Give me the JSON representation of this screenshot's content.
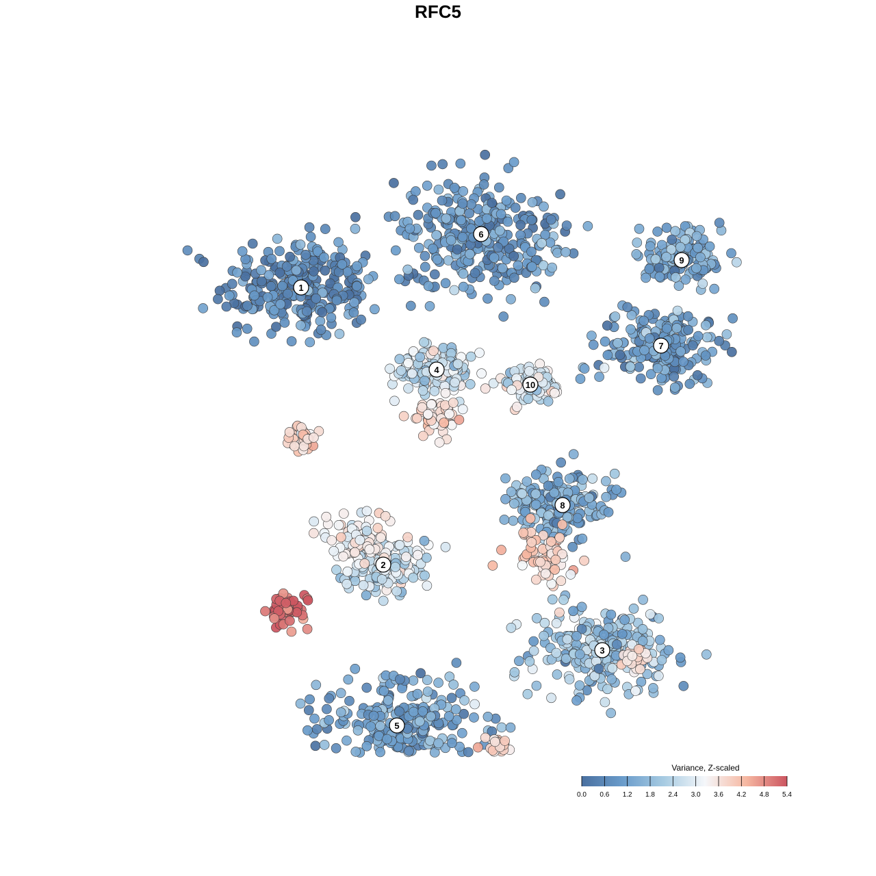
{
  "chart_data": {
    "type": "scatter",
    "title": "RFC5",
    "colorbar": {
      "title": "Variance, Z-scaled",
      "min": 0.0,
      "max": 5.4,
      "ticks": [
        "0.0",
        "0.6",
        "1.2",
        "1.8",
        "2.4",
        "3.0",
        "3.6",
        "4.2",
        "4.8",
        "5.4"
      ],
      "colors": [
        "#4a70a0",
        "#6a9ccb",
        "#a7cbe2",
        "#f5f7fa",
        "#f6b8a2",
        "#cc5560"
      ],
      "placement": "bottom-right"
    },
    "clusters": [
      {
        "label": "1",
        "x": -2.0,
        "y": 2.2,
        "value": 0.6,
        "spread": 1.05
      },
      {
        "label": "2",
        "x": -0.8,
        "y": -1.85,
        "value": 2.6,
        "spread": 0.55
      },
      {
        "label": "3",
        "x": 2.4,
        "y": -3.1,
        "value": 1.9,
        "spread": 0.95
      },
      {
        "label": "4",
        "x": -0.02,
        "y": 1.0,
        "value": 2.7,
        "spread": 0.55
      },
      {
        "label": "5",
        "x": -0.6,
        "y": -4.2,
        "value": 1.2,
        "spread": 1.05
      },
      {
        "label": "6",
        "x": 0.63,
        "y": 2.98,
        "value": 0.9,
        "spread": 1.15
      },
      {
        "label": "7",
        "x": 3.26,
        "y": 1.35,
        "value": 1.0,
        "spread": 0.8
      },
      {
        "label": "8",
        "x": 1.82,
        "y": -0.98,
        "value": 1.4,
        "spread": 0.7
      },
      {
        "label": "9",
        "x": 3.56,
        "y": 2.6,
        "value": 1.3,
        "spread": 0.55
      },
      {
        "label": "10",
        "x": 1.35,
        "y": 0.78,
        "value": 2.9,
        "spread": 0.35
      }
    ],
    "hotspots": [
      {
        "x": -2.2,
        "y": -2.5,
        "value": 5.1,
        "spread": 0.18
      },
      {
        "x": -2.0,
        "y": 0.05,
        "value": 3.8,
        "spread": 0.12
      },
      {
        "x": -0.05,
        "y": 0.3,
        "value": 3.7,
        "spread": 0.2
      },
      {
        "x": 1.55,
        "y": -1.7,
        "value": 3.9,
        "spread": 0.25
      },
      {
        "x": 0.9,
        "y": -4.5,
        "value": 3.7,
        "spread": 0.1
      },
      {
        "x": 2.9,
        "y": -3.2,
        "value": 3.6,
        "spread": 0.1
      },
      {
        "x": -1.15,
        "y": -1.5,
        "value": 3.4,
        "spread": 0.3
      }
    ]
  }
}
